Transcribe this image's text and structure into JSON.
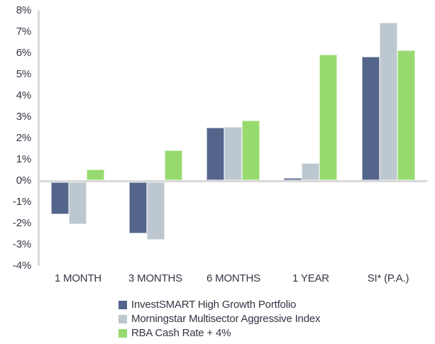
{
  "chart_data": {
    "type": "bar",
    "title": "",
    "categories": [
      "1 MONTH",
      "3 MONTHS",
      "6 MONTHS",
      "1 YEAR",
      "SI* (P.A.)"
    ],
    "series": [
      {
        "name": "InvestSMART High Growth Portfolio",
        "color": "#54658C",
        "values": [
          -1.5,
          -2.4,
          2.45,
          0.1,
          5.8
        ]
      },
      {
        "name": "Morningstar Multisector Aggressive Index",
        "color": "#BDC7CF",
        "values": [
          -1.95,
          -2.7,
          2.5,
          0.8,
          7.4
        ]
      },
      {
        "name": "RBA Cash Rate + 4%",
        "color": "#97DB70",
        "values": [
          0.5,
          1.4,
          2.8,
          5.9,
          6.1
        ]
      }
    ],
    "unit": "%",
    "ylim": [
      -4,
      8
    ],
    "ytick_step": 1,
    "ytick_labels": [
      "8%",
      "7%",
      "6%",
      "5%",
      "4%",
      "3%",
      "2%",
      "1%",
      "0%",
      "-1%",
      "-2%",
      "-3%",
      "-4%"
    ],
    "grid": false,
    "legend_position": "bottom-left",
    "axis_line_color": "#D9D9D9",
    "text_color": "#333744",
    "background_color": "#FFFFFF"
  }
}
